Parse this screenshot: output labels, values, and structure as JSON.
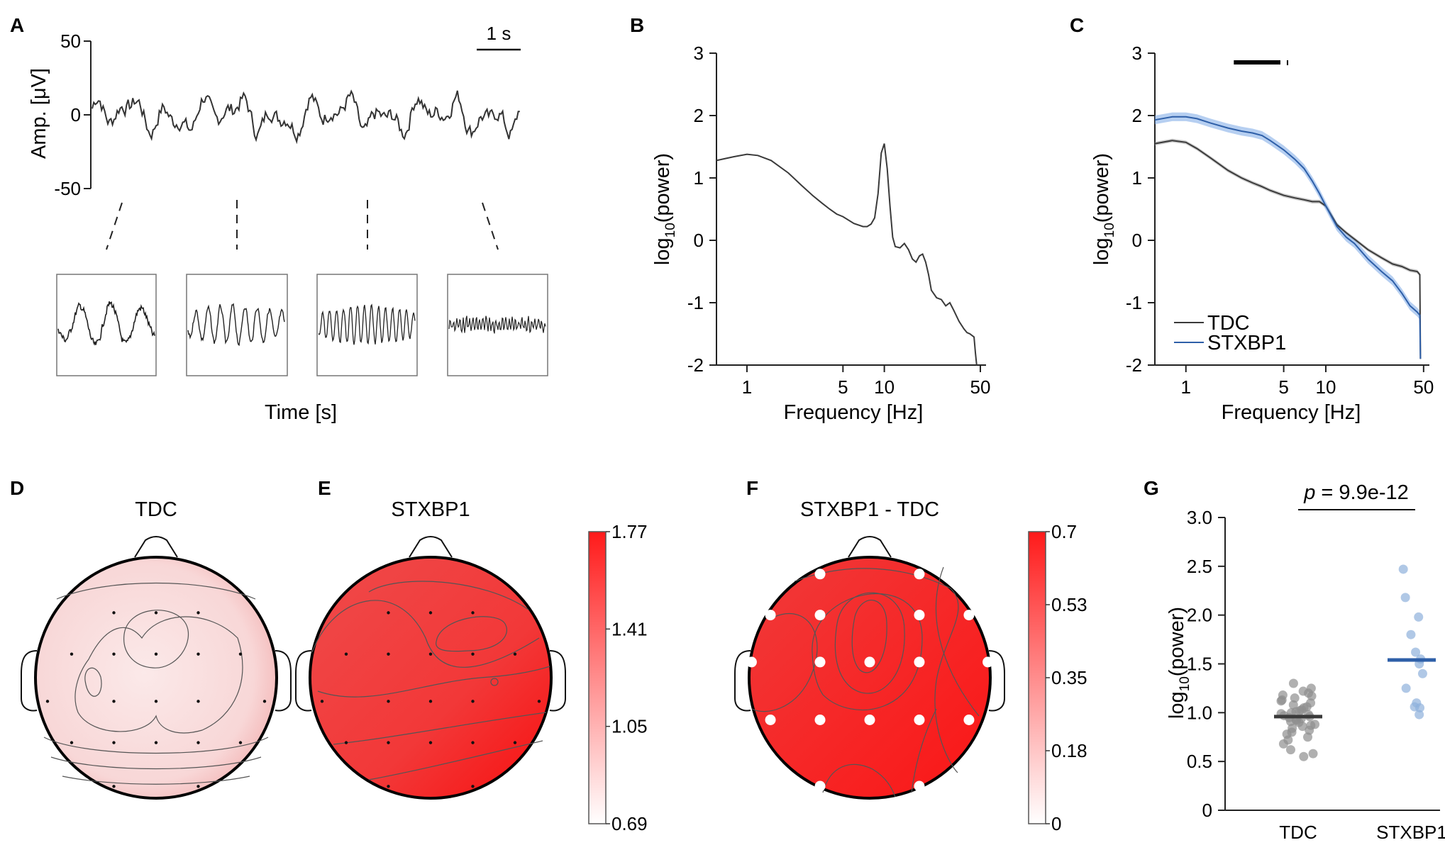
{
  "panels": {
    "A": {
      "label": "A",
      "ylabel": "Amp. [μV]",
      "yticks": [
        "50",
        "0",
        "-50"
      ],
      "scalebar": "1 s",
      "xlabel": "Time [s]"
    },
    "B": {
      "label": "B",
      "ylabel_main": "log",
      "ylabel_sub": "10",
      "ylabel_rest": "(power)",
      "yticks": [
        "3",
        "2",
        "1",
        "0",
        "-1",
        "-2"
      ],
      "xticks": [
        "1",
        "5",
        "10",
        "50"
      ],
      "xlabel": "Frequency [Hz]"
    },
    "C": {
      "label": "C",
      "ylabel_main": "log",
      "ylabel_sub": "10",
      "ylabel_rest": "(power)",
      "yticks": [
        "3",
        "2",
        "1",
        "0",
        "-1",
        "-2"
      ],
      "xticks": [
        "1",
        "5",
        "10",
        "50"
      ],
      "xlabel": "Frequency [Hz]",
      "legend": [
        "TDC",
        "STXBP1"
      ]
    },
    "D": {
      "label": "D",
      "title": "TDC"
    },
    "E": {
      "label": "E",
      "title": "STXBP1"
    },
    "F": {
      "label": "F",
      "title": "STXBP1 - TDC"
    },
    "G": {
      "label": "G",
      "ylabel_main": "log",
      "ylabel_sub": "10",
      "ylabel_rest": "(power)",
      "yticks": [
        "3.0",
        "2.5",
        "2.0",
        "1.5",
        "1.0",
        "0.5",
        "0"
      ],
      "xticks": [
        "TDC",
        "STXBP1"
      ],
      "p_label": "p",
      "p_value": " = 9.9e-12"
    }
  },
  "colorbars": {
    "E": {
      "ticks": [
        "1.77",
        "1.41",
        "1.05",
        "0.69"
      ]
    },
    "F": {
      "ticks": [
        "0.7",
        "0.53",
        "0.35",
        "0.18",
        "0"
      ]
    }
  },
  "colors": {
    "tdc": "#3a3a3a",
    "stxbp1": "#2e5fa8",
    "red": "#ff2020"
  },
  "chart_data": [
    {
      "id": "B",
      "type": "line",
      "xscale": "log",
      "xlabel": "Frequency [Hz]",
      "ylabel": "log10(power)",
      "xlim": [
        0.6,
        55
      ],
      "ylim": [
        -2,
        3
      ],
      "x": [
        0.6,
        0.8,
        1.0,
        1.2,
        1.5,
        2,
        2.5,
        3,
        3.5,
        4,
        4.5,
        5,
        6,
        7,
        7.5,
        8,
        8.5,
        9,
        9.5,
        10,
        10.5,
        11,
        11.5,
        12,
        13,
        14,
        15,
        16,
        17,
        18,
        19,
        20,
        21,
        22,
        24,
        26,
        28,
        30,
        32,
        35,
        38,
        40,
        42,
        45,
        46,
        47
      ],
      "y": [
        1.28,
        1.34,
        1.38,
        1.36,
        1.28,
        1.08,
        0.88,
        0.72,
        0.6,
        0.5,
        0.42,
        0.38,
        0.27,
        0.22,
        0.22,
        0.26,
        0.36,
        0.75,
        1.4,
        1.55,
        1.15,
        0.55,
        0.05,
        -0.1,
        -0.12,
        -0.05,
        -0.15,
        -0.3,
        -0.35,
        -0.25,
        -0.22,
        -0.35,
        -0.55,
        -0.8,
        -0.92,
        -0.95,
        -1.05,
        -1.0,
        -1.12,
        -1.3,
        -1.42,
        -1.48,
        -1.5,
        -1.55,
        -1.8,
        -2.0
      ]
    },
    {
      "id": "C",
      "type": "line",
      "xscale": "log",
      "xlabel": "Frequency [Hz]",
      "ylabel": "log10(power)",
      "xlim": [
        0.6,
        55
      ],
      "ylim": [
        -2,
        3
      ],
      "significance_bar_hz": [
        2.2,
        5.2
      ],
      "series": [
        {
          "name": "TDC",
          "x": [
            0.6,
            0.8,
            1.0,
            1.2,
            1.5,
            2,
            2.5,
            3,
            3.5,
            4,
            5,
            6,
            7,
            8,
            9,
            10,
            12,
            14,
            16,
            20,
            25,
            30,
            35,
            40,
            45,
            47,
            47.5
          ],
          "y": [
            1.55,
            1.6,
            1.57,
            1.47,
            1.32,
            1.12,
            1.0,
            0.92,
            0.86,
            0.8,
            0.72,
            0.68,
            0.65,
            0.62,
            0.62,
            0.55,
            0.25,
            0.12,
            0.02,
            -0.15,
            -0.28,
            -0.38,
            -0.42,
            -0.48,
            -0.5,
            -0.55,
            -1.9
          ],
          "ci": 0.03
        },
        {
          "name": "STXBP1",
          "x": [
            0.6,
            0.8,
            1.0,
            1.2,
            1.5,
            2,
            2.5,
            3,
            3.5,
            4,
            5,
            6,
            7,
            8,
            9,
            10,
            12,
            14,
            16,
            20,
            25,
            30,
            35,
            40,
            45,
            47,
            47.5
          ],
          "y": [
            1.93,
            1.98,
            1.98,
            1.95,
            1.88,
            1.8,
            1.75,
            1.72,
            1.68,
            1.6,
            1.45,
            1.3,
            1.15,
            0.95,
            0.75,
            0.55,
            0.22,
            0.05,
            -0.05,
            -0.3,
            -0.5,
            -0.65,
            -0.85,
            -1.05,
            -1.15,
            -1.2,
            -1.9
          ],
          "ci": 0.07
        }
      ]
    },
    {
      "id": "E_colorbar",
      "type": "heatmap",
      "range": [
        0.69,
        1.77
      ]
    },
    {
      "id": "F_colorbar",
      "type": "heatmap",
      "range": [
        0,
        0.7
      ]
    },
    {
      "id": "G",
      "type": "scatter",
      "categories": [
        "TDC",
        "STXBP1"
      ],
      "ylabel": "log10(power)",
      "ylim": [
        0,
        3.0
      ],
      "series": [
        {
          "name": "TDC",
          "mean": 0.96,
          "values": [
            0.55,
            0.58,
            0.62,
            0.68,
            0.72,
            0.75,
            0.78,
            0.8,
            0.82,
            0.84,
            0.86,
            0.87,
            0.88,
            0.9,
            0.91,
            0.92,
            0.93,
            0.94,
            0.95,
            0.96,
            0.97,
            0.98,
            0.99,
            1.0,
            1.01,
            1.02,
            1.03,
            1.05,
            1.06,
            1.08,
            1.1,
            1.12,
            1.13,
            1.15,
            1.17,
            1.18,
            1.2,
            1.22,
            1.25,
            1.3
          ]
        },
        {
          "name": "STXBP1",
          "mean": 1.54,
          "values": [
            0.98,
            1.05,
            1.06,
            1.1,
            1.25,
            1.4,
            1.5,
            1.55,
            1.62,
            1.8,
            1.98,
            2.18,
            2.47
          ]
        }
      ]
    }
  ]
}
